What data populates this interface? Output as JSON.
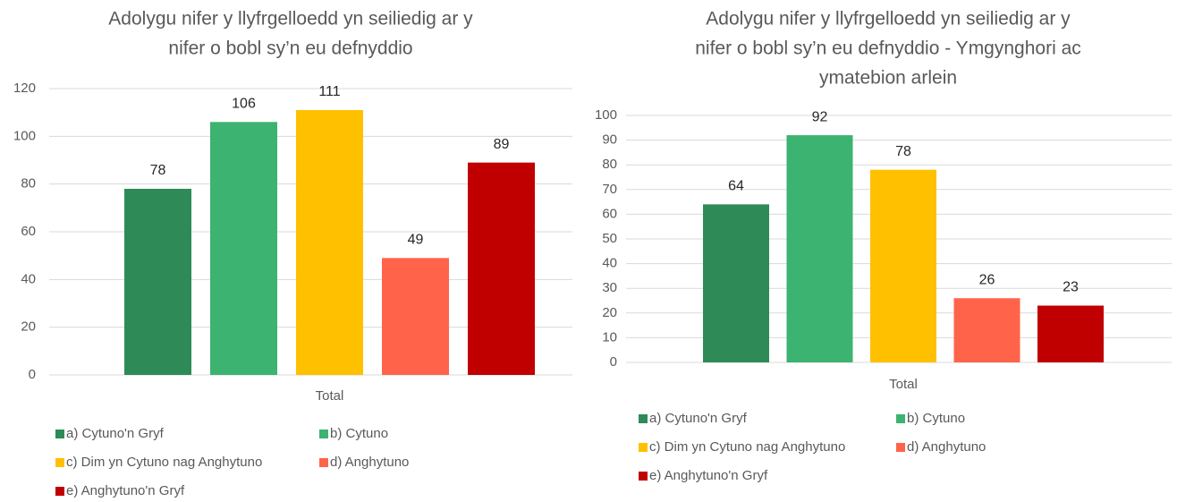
{
  "chart_data": [
    {
      "type": "bar",
      "title": [
        "Adolygu nifer y llyfrgelloedd yn seiliedig ar y",
        "nifer o bobl sy’n eu defnyddio"
      ],
      "categories": [
        "Total"
      ],
      "series": [
        {
          "name": "a) Cytuno'n Gryf",
          "color": "#2e8b57",
          "values": [
            78
          ]
        },
        {
          "name": "b) Cytuno",
          "color": "#3cb371",
          "values": [
            106
          ]
        },
        {
          "name": "c) Dim yn Cytuno nag Anghytuno",
          "color": "#ffc000",
          "values": [
            111
          ]
        },
        {
          "name": "d) Anghytuno",
          "color": "#ff644b",
          "values": [
            49
          ]
        },
        {
          "name": "e) Anghytuno'n Gryf",
          "color": "#c00000",
          "values": [
            89
          ]
        }
      ],
      "ylim": [
        0,
        120
      ],
      "yticks": [
        0,
        20,
        40,
        60,
        80,
        100,
        120
      ],
      "grid": true,
      "legend": "bottom"
    },
    {
      "type": "bar",
      "title": [
        "Adolygu nifer y llyfrgelloedd yn seiliedig ar y",
        "nifer o bobl sy’n eu defnyddio - Ymgynghori ac",
        "ymatebion arlein"
      ],
      "categories": [
        "Total"
      ],
      "series": [
        {
          "name": "a) Cytuno'n Gryf",
          "color": "#2e8b57",
          "values": [
            64
          ]
        },
        {
          "name": "b) Cytuno",
          "color": "#3cb371",
          "values": [
            92
          ]
        },
        {
          "name": "c) Dim yn Cytuno nag Anghytuno",
          "color": "#ffc000",
          "values": [
            78
          ]
        },
        {
          "name": "d) Anghytuno",
          "color": "#ff644b",
          "values": [
            26
          ]
        },
        {
          "name": "e) Anghytuno'n Gryf",
          "color": "#c00000",
          "values": [
            23
          ]
        }
      ],
      "ylim": [
        0,
        100
      ],
      "yticks": [
        0,
        10,
        20,
        30,
        40,
        50,
        60,
        70,
        80,
        90,
        100
      ],
      "grid": true,
      "legend": "bottom"
    }
  ]
}
